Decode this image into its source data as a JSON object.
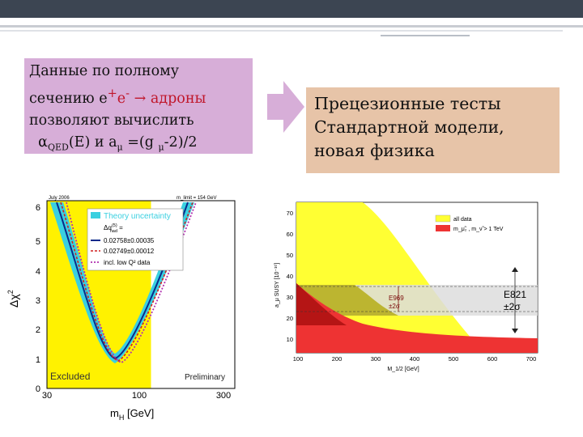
{
  "left_box": {
    "line1": "Данные по полному",
    "line2_prefix": "сечению e",
    "line2_sup1": "+",
    "line2_mid": "e",
    "line2_sup2": "-",
    "line2_arrow": " → адроны",
    "line3": "позволяют вычислить",
    "line4_alpha": "α",
    "line4_sub": "QED",
    "line4_rest1": "(E) и a",
    "line4_mu1": "μ",
    "line4_rest2": " =(g ",
    "line4_mu2": "μ",
    "line4_rest3": "-2)/2"
  },
  "right_box": {
    "line1": "Прецезионные тесты",
    "line2": "Стандартной модели,",
    "line3": "новая физика"
  },
  "colors": {
    "topbar": "#3c4552",
    "left_box_bg": "#d7aed8",
    "right_box_bg": "#e7c4a8",
    "arrow": "#d7aed8",
    "excluded": "#fff200",
    "theory_band": "#3ad0e0",
    "right_yellow": "#ffff33",
    "right_red": "#ee3333",
    "right_grey": "#dddddd"
  },
  "left_plot": {
    "corner_left": "July 2006",
    "corner_right": "m_limit = 154 GeV",
    "legend_title": "Theory uncertainty",
    "legend_delta": "Δα",
    "legend_delta_sup": "(5)",
    "legend_delta_sub": "had",
    "legend_eq": " =",
    "legend_items": [
      "0.02758±0.00035",
      "0.02749±0.00012",
      "incl. low Q² data"
    ],
    "excluded_label": "Excluded",
    "preliminary_label": "Preliminary",
    "ylabel": "Δχ",
    "ylabel_sup": "2",
    "xlabel": "m",
    "xlabel_sub": "H",
    "xlabel_unit": " [GeV]",
    "y_ticks": [
      "0",
      "1",
      "2",
      "3",
      "4",
      "5",
      "6"
    ],
    "x_ticks": [
      "30",
      "100",
      "300"
    ]
  },
  "right_plot": {
    "legend_items": [
      "all data",
      "m_μ̃₂ , m_ν̃ > 1 TeV"
    ],
    "e821_label": "E821",
    "e821_sigma": "±2σ",
    "e969_label": "E969",
    "e969_sigma": "±2σ",
    "ylabel": "a_μ SUSY [10⁻¹⁰]",
    "xlabel": "M_1/2 [GeV]",
    "y_ticks": [
      "10",
      "20",
      "30",
      "40",
      "50",
      "60",
      "70"
    ],
    "x_ticks": [
      "100",
      "200",
      "300",
      "400",
      "500",
      "600",
      "700"
    ]
  }
}
